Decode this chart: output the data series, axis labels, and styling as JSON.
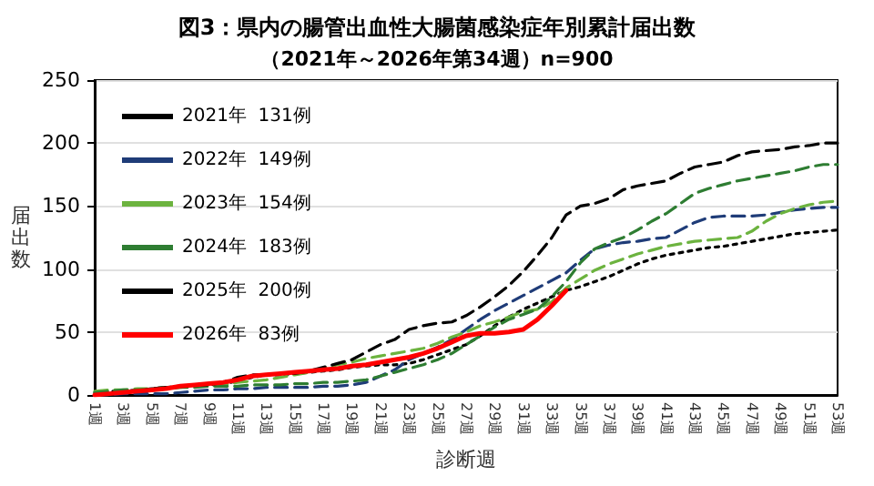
{
  "chart_data": {
    "type": "line",
    "title": "図3：県内の腸管出血性大腸菌感染症年別累計届出数",
    "subtitle": "（2021年～2026年第34週）n=900",
    "xlabel": "診断週",
    "ylabel": "届出数",
    "categories": [
      "1週",
      null,
      "3週",
      null,
      "5週",
      null,
      "7週",
      null,
      "9週",
      null,
      "11週",
      null,
      "13週",
      null,
      "15週",
      null,
      "17週",
      null,
      "19週",
      null,
      "21週",
      null,
      "23週",
      null,
      "25週",
      null,
      "27週",
      null,
      "29週",
      null,
      "31週",
      null,
      "33週",
      null,
      "35週",
      null,
      "37週",
      null,
      "39週",
      null,
      "41週",
      null,
      "43週",
      null,
      "45週",
      null,
      "47週",
      null,
      "49週",
      null,
      "51週",
      null,
      "53週"
    ],
    "series": [
      {
        "name": "2021年  131例",
        "color": "#000000",
        "line_style": "dotted",
        "values": [
          2,
          3,
          3,
          4,
          5,
          6,
          7,
          8,
          8,
          9,
          11,
          14,
          16,
          16,
          17,
          18,
          19,
          20,
          22,
          23,
          24,
          24,
          25,
          28,
          32,
          36,
          40,
          47,
          55,
          62,
          68,
          73,
          78,
          83,
          86,
          90,
          94,
          99,
          104,
          108,
          111,
          113,
          115,
          117,
          118,
          120,
          122,
          124,
          126,
          128,
          129,
          130,
          131
        ]
      },
      {
        "name": "2022年  149例",
        "color": "#1f3c78",
        "line_style": "dashed",
        "values": [
          0,
          0,
          1,
          1,
          1,
          1,
          2,
          3,
          4,
          4,
          5,
          5,
          6,
          6,
          6,
          6,
          7,
          7,
          8,
          10,
          15,
          20,
          28,
          33,
          38,
          44,
          52,
          60,
          67,
          73,
          79,
          85,
          91,
          97,
          107,
          116,
          119,
          121,
          122,
          124,
          125,
          131,
          137,
          141,
          142,
          142,
          142,
          143,
          145,
          147,
          148,
          149,
          149
        ]
      },
      {
        "name": "2023年  154例",
        "color": "#6cb33f",
        "line_style": "dashed",
        "values": [
          3,
          4,
          4,
          5,
          5,
          6,
          6,
          7,
          7,
          8,
          10,
          11,
          12,
          14,
          16,
          18,
          21,
          24,
          26,
          29,
          31,
          33,
          35,
          37,
          41,
          46,
          50,
          55,
          58,
          62,
          66,
          68,
          74,
          85,
          92,
          99,
          104,
          108,
          112,
          115,
          118,
          120,
          122,
          123,
          124,
          125,
          130,
          138,
          144,
          148,
          151,
          153,
          154
        ]
      },
      {
        "name": "2024年  183例",
        "color": "#2e7d32",
        "line_style": "dashed",
        "values": [
          2,
          3,
          4,
          4,
          5,
          5,
          6,
          6,
          7,
          7,
          7,
          8,
          8,
          8,
          9,
          9,
          10,
          10,
          11,
          12,
          15,
          18,
          21,
          24,
          28,
          33,
          40,
          47,
          54,
          60,
          64,
          68,
          78,
          90,
          105,
          116,
          121,
          125,
          131,
          138,
          144,
          152,
          160,
          164,
          167,
          170,
          172,
          174,
          176,
          178,
          181,
          183,
          183
        ]
      },
      {
        "name": "2025年  200例",
        "color": "#000000",
        "line_style": "dashed",
        "values": [
          0,
          1,
          2,
          3,
          5,
          6,
          7,
          8,
          8,
          10,
          14,
          16,
          16,
          17,
          17,
          19,
          22,
          25,
          28,
          34,
          40,
          44,
          52,
          55,
          57,
          58,
          63,
          70,
          78,
          87,
          98,
          111,
          125,
          143,
          150,
          152,
          156,
          163,
          166,
          168,
          170,
          176,
          181,
          183,
          185,
          190,
          193,
          194,
          195,
          197,
          198,
          200,
          200
        ]
      },
      {
        "name": "2026年  83例",
        "color": "#ff0000",
        "line_style": "solid",
        "values": [
          0,
          1,
          2,
          3,
          4,
          5,
          7,
          8,
          9,
          10,
          12,
          15,
          16,
          17,
          18,
          19,
          20,
          21,
          23,
          24,
          26,
          28,
          30,
          33,
          37,
          42,
          47,
          49,
          49,
          50,
          52,
          60,
          71,
          83,
          null,
          null,
          null,
          null,
          null,
          null,
          null,
          null,
          null,
          null,
          null,
          null,
          null,
          null,
          null,
          null,
          null,
          null,
          null
        ]
      }
    ],
    "ylim": [
      0,
      250
    ],
    "yticks": [
      0,
      50,
      100,
      150,
      200,
      250
    ],
    "grid": "y",
    "legend": "top left",
    "marker": "none"
  }
}
